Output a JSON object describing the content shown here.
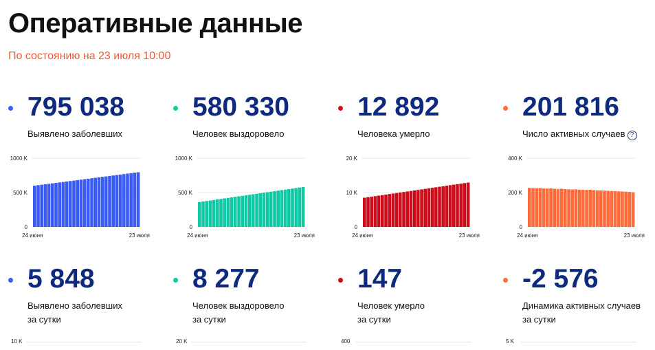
{
  "header": {
    "title": "Оперативные данные",
    "subtitle": "По состоянию на 23 июля 10:00"
  },
  "colors": {
    "blue": "#3b5cf2",
    "teal": "#10c9a4",
    "red": "#cc0c1b",
    "orange": "#ff6b3a",
    "value": "#0d2a7e",
    "subtitle": "#ec5a38"
  },
  "totals": [
    {
      "value": "795 038",
      "label": "Выявлено заболевших",
      "color_key": "blue"
    },
    {
      "value": "580 330",
      "label": "Человек выздоровело",
      "color_key": "teal"
    },
    {
      "value": "12 892",
      "label": "Человека умерло",
      "color_key": "red"
    },
    {
      "value": "201 816",
      "label": "Число активных случаев",
      "color_key": "orange",
      "help_icon": "question-circle-icon"
    }
  ],
  "daily": [
    {
      "value": "5 848",
      "label_line1": "Выявлено заболевших",
      "label_line2": "за сутки",
      "color_key": "blue",
      "chart_top_tick": "10 K"
    },
    {
      "value": "8 277",
      "label_line1": "Человек выздоровело",
      "label_line2": "за сутки",
      "color_key": "teal",
      "chart_top_tick": "20 K"
    },
    {
      "value": "147",
      "label_line1": "Человек умерло",
      "label_line2": "за сутки",
      "color_key": "red",
      "chart_top_tick": "400"
    },
    {
      "value": "-2 576",
      "label_line1": "Динамика активных случаев",
      "label_line2": "за сутки",
      "color_key": "orange",
      "chart_top_tick": "5 K"
    }
  ],
  "chart_data": [
    {
      "type": "bar",
      "color_key": "blue",
      "x_start_label": "24 июня",
      "x_end_label": "23 июля",
      "yticks": [
        {
          "value": 0,
          "label": "0"
        },
        {
          "value": 500000,
          "label": "500 K"
        },
        {
          "value": 1000000,
          "label": "1000 K"
        }
      ],
      "ylim": [
        0,
        1000000
      ],
      "n": 30,
      "start": 600000,
      "end": 795038
    },
    {
      "type": "bar",
      "color_key": "teal",
      "x_start_label": "24 июня",
      "x_end_label": "23 июля",
      "yticks": [
        {
          "value": 0,
          "label": "0"
        },
        {
          "value": 500000,
          "label": "500 K"
        },
        {
          "value": 1000000,
          "label": "1000 K"
        }
      ],
      "ylim": [
        0,
        1000000
      ],
      "n": 30,
      "start": 362000,
      "end": 580330
    },
    {
      "type": "bar",
      "color_key": "red",
      "x_start_label": "24 июня",
      "x_end_label": "23 июля",
      "yticks": [
        {
          "value": 0,
          "label": "0"
        },
        {
          "value": 10000,
          "label": "10 K"
        },
        {
          "value": 20000,
          "label": "20 K"
        }
      ],
      "ylim": [
        0,
        20000
      ],
      "n": 30,
      "start": 8500,
      "end": 12892
    },
    {
      "type": "bar",
      "color_key": "orange",
      "x_start_label": "24 июня",
      "x_end_label": "23 июля",
      "yticks": [
        {
          "value": 0,
          "label": "0"
        },
        {
          "value": 200000,
          "label": "200 K"
        },
        {
          "value": 400000,
          "label": "400 K"
        }
      ],
      "ylim": [
        0,
        400000
      ],
      "values": [
        227000,
        226000,
        225000,
        226000,
        224000,
        223000,
        224000,
        222000,
        221000,
        222000,
        220000,
        219000,
        218000,
        219000,
        217000,
        216000,
        215000,
        216000,
        214000,
        213000,
        212000,
        211000,
        210000,
        209000,
        208000,
        207000,
        206000,
        205000,
        204000,
        201816
      ]
    }
  ]
}
